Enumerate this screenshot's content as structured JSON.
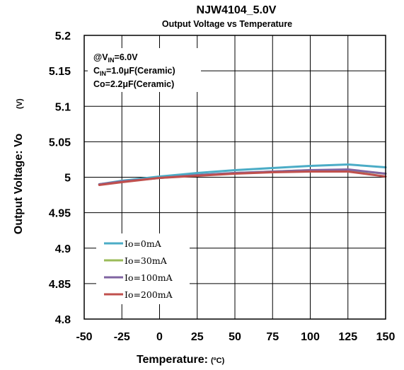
{
  "chart_data": {
    "type": "line",
    "title": "NJW4104_5.0V",
    "subtitle": "Output Voltage vs Temperature",
    "xlabel": "Temperature:",
    "xunit": "(ºC)",
    "ylabel": "Output Voltage: Vo",
    "yunit": "(V)",
    "xlim": [
      -50,
      150
    ],
    "ylim": [
      4.8,
      5.2
    ],
    "xticks": [
      "-50",
      "-25",
      "0",
      "25",
      "50",
      "75",
      "100",
      "125",
      "150"
    ],
    "yticks": [
      "5.2",
      "5.15",
      "5.1",
      "5.05",
      "5",
      "4.95",
      "4.9",
      "4.85",
      "4.8"
    ],
    "grid": true,
    "legend_position": "bottom-left",
    "annotation": {
      "line1": {
        "main": "@V",
        "sub": "IN",
        "rest": "=6.0V"
      },
      "line2": {
        "main": "C",
        "sub": "IN",
        "rest": "=1.0μF(Ceramic)"
      },
      "line3": {
        "main": "Co=2.2μF(Ceramic)"
      }
    },
    "series": [
      {
        "name": "Io=0mA",
        "color": "#4BACC6",
        "x": [
          -40,
          -25,
          0,
          25,
          50,
          75,
          100,
          125,
          150
        ],
        "y": [
          4.99,
          4.995,
          5.001,
          5.006,
          5.01,
          5.013,
          5.016,
          5.018,
          5.014
        ]
      },
      {
        "name": "Io=30mA",
        "color": "#9BBB59",
        "x": [
          -40,
          -25,
          0,
          25,
          50,
          75,
          100,
          125,
          150
        ],
        "y": [
          4.99,
          4.994,
          4.999,
          5.003,
          5.006,
          5.008,
          5.01,
          5.01,
          5.005
        ]
      },
      {
        "name": "Io=100mA",
        "color": "#8064A2",
        "x": [
          -40,
          -25,
          0,
          25,
          50,
          75,
          100,
          125,
          150
        ],
        "y": [
          4.99,
          4.994,
          4.999,
          5.003,
          5.006,
          5.008,
          5.01,
          5.011,
          5.005
        ]
      },
      {
        "name": "Io=200mA",
        "color": "#C0504D",
        "x": [
          -40,
          -25,
          0,
          25,
          50,
          75,
          100,
          125,
          150
        ],
        "y": [
          4.989,
          4.993,
          4.999,
          5.002,
          5.005,
          5.007,
          5.008,
          5.008,
          5.001
        ]
      }
    ]
  }
}
